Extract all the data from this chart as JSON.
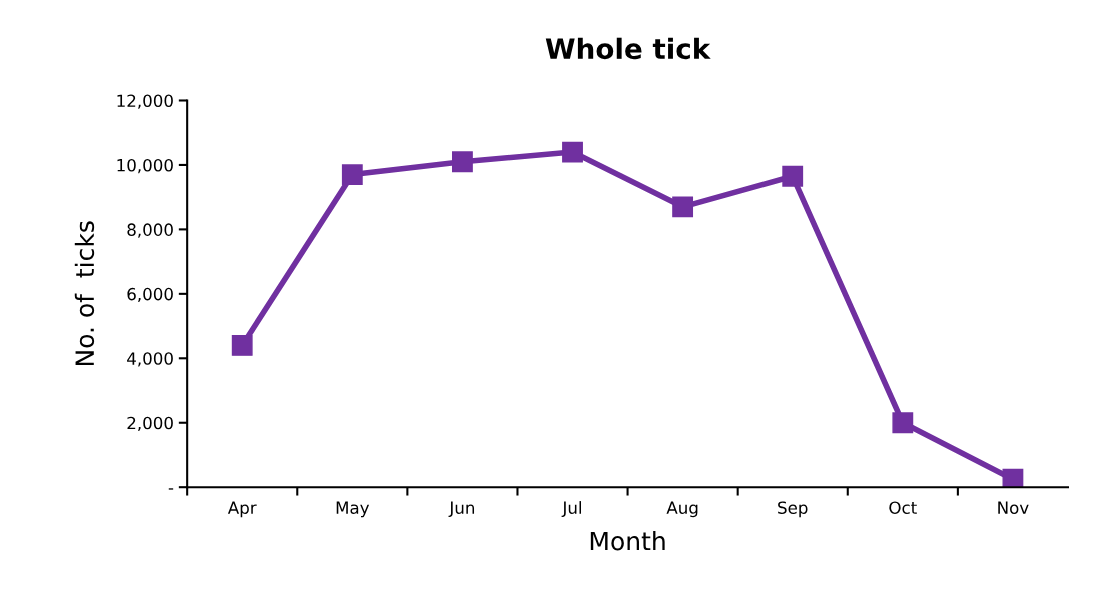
{
  "chart_data": {
    "type": "line",
    "title": "Whole tick",
    "xlabel": "Month",
    "ylabel": "No. of  ticks",
    "categories": [
      "Apr",
      "May",
      "Jun",
      "Jul",
      "Aug",
      "Sep",
      "Oct",
      "Nov"
    ],
    "series": [
      {
        "color": "#7030a0",
        "values": [
          4400,
          9700,
          10100,
          10400,
          8700,
          9650,
          2000,
          250
        ]
      }
    ],
    "ylim": [
      0,
      12000
    ],
    "yticks": [
      {
        "value": 0,
        "label": "-"
      },
      {
        "value": 2000,
        "label": "2,000"
      },
      {
        "value": 4000,
        "label": "4,000"
      },
      {
        "value": 6000,
        "label": "6,000"
      },
      {
        "value": 8000,
        "label": "8,000"
      },
      {
        "value": 10000,
        "label": "10,000"
      },
      {
        "value": 12000,
        "label": "12,000"
      }
    ],
    "grid": false,
    "legend": false,
    "marker": "square",
    "line_style": "solid"
  }
}
